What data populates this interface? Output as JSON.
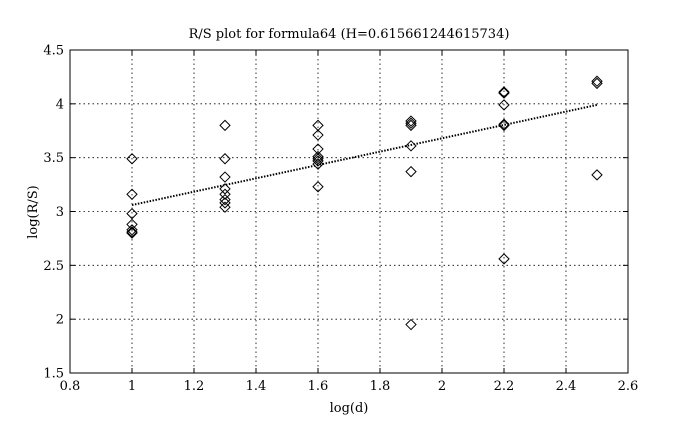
{
  "chart_data": {
    "type": "scatter",
    "title": "R/S plot for formula64 (H=0.615661244615734)",
    "xlabel": "log(d)",
    "ylabel": "log(R/S)",
    "xlim": [
      0.8,
      2.6
    ],
    "ylim": [
      1.5,
      4.5
    ],
    "xticks": [
      0.8,
      1.0,
      1.2,
      1.4,
      1.6,
      1.8,
      2.0,
      2.2,
      2.4,
      2.6
    ],
    "xtick_labels": [
      "0.8",
      "1",
      "1.2",
      "1.4",
      "1.6",
      "1.8",
      "2",
      "2.2",
      "2.4",
      "2.6"
    ],
    "yticks": [
      1.5,
      2.0,
      2.5,
      3.0,
      3.5,
      4.0,
      4.5
    ],
    "ytick_labels": [
      "1.5",
      "2",
      "2.5",
      "3",
      "3.5",
      "4",
      "4.5"
    ],
    "grid": true,
    "marker": "diamond",
    "points": [
      {
        "x": 1.0,
        "y": 3.49
      },
      {
        "x": 1.0,
        "y": 3.16
      },
      {
        "x": 1.0,
        "y": 2.98
      },
      {
        "x": 1.0,
        "y": 2.88
      },
      {
        "x": 1.0,
        "y": 2.83
      },
      {
        "x": 1.0,
        "y": 2.81
      },
      {
        "x": 1.0,
        "y": 2.8
      },
      {
        "x": 1.3,
        "y": 3.8
      },
      {
        "x": 1.3,
        "y": 3.49
      },
      {
        "x": 1.3,
        "y": 3.32
      },
      {
        "x": 1.3,
        "y": 3.21
      },
      {
        "x": 1.3,
        "y": 3.16
      },
      {
        "x": 1.3,
        "y": 3.11
      },
      {
        "x": 1.3,
        "y": 3.08
      },
      {
        "x": 1.3,
        "y": 3.04
      },
      {
        "x": 1.6,
        "y": 3.8
      },
      {
        "x": 1.6,
        "y": 3.71
      },
      {
        "x": 1.6,
        "y": 3.58
      },
      {
        "x": 1.6,
        "y": 3.51
      },
      {
        "x": 1.6,
        "y": 3.49
      },
      {
        "x": 1.6,
        "y": 3.47
      },
      {
        "x": 1.6,
        "y": 3.44
      },
      {
        "x": 1.6,
        "y": 3.23
      },
      {
        "x": 1.9,
        "y": 3.84
      },
      {
        "x": 1.9,
        "y": 3.82
      },
      {
        "x": 1.9,
        "y": 3.8
      },
      {
        "x": 1.9,
        "y": 3.61
      },
      {
        "x": 1.9,
        "y": 3.37
      },
      {
        "x": 1.9,
        "y": 1.95
      },
      {
        "x": 2.2,
        "y": 4.11
      },
      {
        "x": 2.2,
        "y": 4.1
      },
      {
        "x": 2.2,
        "y": 3.99
      },
      {
        "x": 2.2,
        "y": 3.81
      },
      {
        "x": 2.2,
        "y": 3.8
      },
      {
        "x": 2.2,
        "y": 2.56
      },
      {
        "x": 2.5,
        "y": 4.21
      },
      {
        "x": 2.5,
        "y": 4.19
      },
      {
        "x": 2.5,
        "y": 3.34
      }
    ],
    "fit_line": {
      "style": "dotted",
      "x": [
        1.0,
        2.5
      ],
      "y": [
        3.06,
        3.99
      ]
    }
  }
}
